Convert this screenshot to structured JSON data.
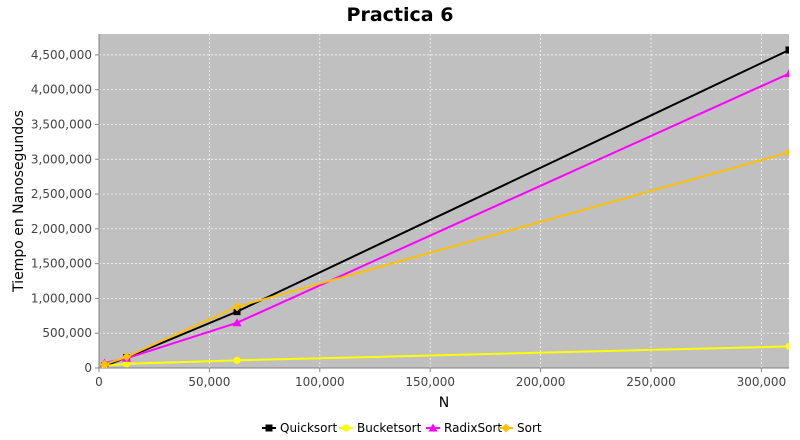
{
  "chart_data": {
    "type": "line",
    "title": "Practica 6",
    "xlabel": "N",
    "ylabel": "Tiempo en Nanosegundos",
    "xlim": [
      0,
      312500
    ],
    "ylim": [
      0,
      4800000
    ],
    "x_ticks": [
      "0",
      "50,000",
      "100,000",
      "150,000",
      "200,000",
      "250,000",
      "300,000"
    ],
    "y_ticks": [
      "0",
      "500,000",
      "1,000,000",
      "1,500,000",
      "2,000,000",
      "2,500,000",
      "3,000,000",
      "3,500,000",
      "4,000,000",
      "4,500,000"
    ],
    "plot_background": "#c0c0c0",
    "grid": true,
    "legend_position": "bottom",
    "x": [
      2500,
      12500,
      62500,
      312500
    ],
    "series": [
      {
        "name": "Quicksort",
        "values": [
          30000,
          150000,
          810000,
          4570000
        ],
        "color": "#000000",
        "marker": "square"
      },
      {
        "name": "Bucketsort",
        "values": [
          30000,
          60000,
          110000,
          310000
        ],
        "color": "#ffff00",
        "marker": "circle"
      },
      {
        "name": "RadixSort",
        "values": [
          70000,
          140000,
          650000,
          4230000
        ],
        "color": "#ff00ff",
        "marker": "triangle"
      },
      {
        "name": "Sort",
        "values": [
          50000,
          160000,
          880000,
          3100000
        ],
        "color": "#ffc000",
        "marker": "diamond"
      }
    ]
  }
}
